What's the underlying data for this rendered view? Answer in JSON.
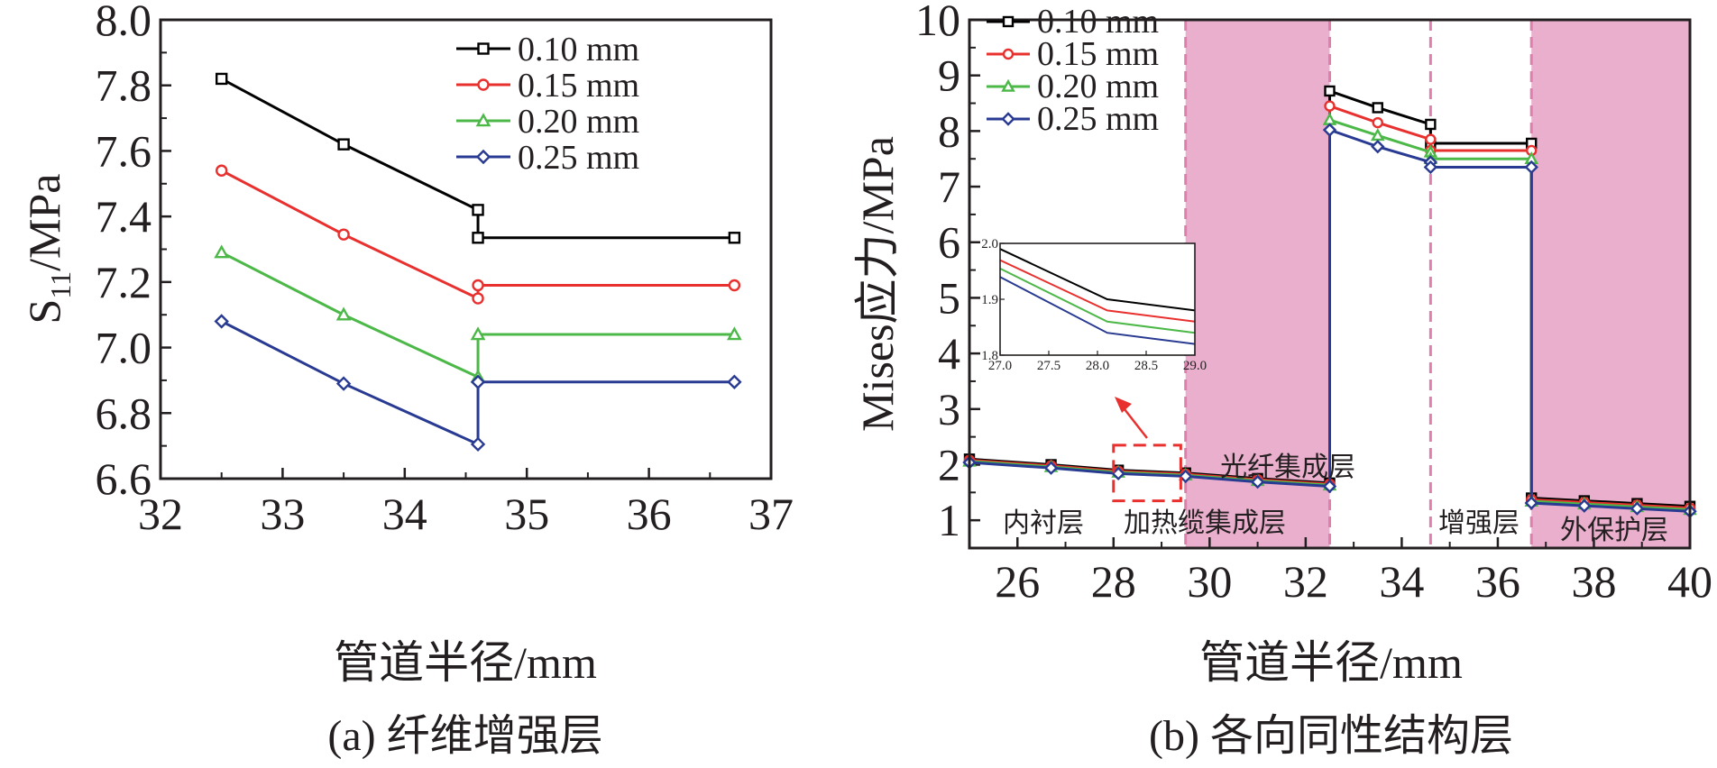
{
  "colors": {
    "s1": "#000000",
    "s2": "#e8302e",
    "s3": "#4cb848",
    "s4": "#283a91",
    "band": "#e9afcc",
    "divider": "#e07fae",
    "highlight": "#e8302e"
  },
  "chart_data": [
    {
      "type": "line",
      "caption": "(a) 纤维增强层",
      "xlabel": "管道半径/mm",
      "ylabel_main": "S",
      "ylabel_sub": "11",
      "ylabel_unit": "/MPa",
      "xlim": [
        32,
        37
      ],
      "ylim": [
        6.6,
        8.0
      ],
      "xticks": [
        "32",
        "33",
        "34",
        "35",
        "36",
        "37"
      ],
      "yticks": [
        "6.6",
        "6.8",
        "7.0",
        "7.2",
        "7.4",
        "7.6",
        "7.8",
        "8.0"
      ],
      "legend_position": "top-right",
      "series": [
        {
          "name": "0.10 mm",
          "color": "#000000",
          "marker": "square",
          "points": [
            [
              32.5,
              7.82
            ],
            [
              33.5,
              7.62
            ],
            [
              34.6,
              7.42
            ],
            [
              34.6,
              7.335
            ],
            [
              36.7,
              7.335
            ]
          ]
        },
        {
          "name": "0.15 mm",
          "color": "#e8302e",
          "marker": "circle",
          "points": [
            [
              32.5,
              7.54
            ],
            [
              33.5,
              7.345
            ],
            [
              34.6,
              7.15
            ],
            [
              34.6,
              7.19
            ],
            [
              36.7,
              7.19
            ]
          ]
        },
        {
          "name": "0.20 mm",
          "color": "#4cb848",
          "marker": "triangle",
          "points": [
            [
              32.5,
              7.29
            ],
            [
              33.5,
              7.1
            ],
            [
              34.6,
              6.91
            ],
            [
              34.6,
              7.04
            ],
            [
              36.7,
              7.04
            ]
          ]
        },
        {
          "name": "0.25 mm",
          "color": "#283a91",
          "marker": "diamond",
          "points": [
            [
              32.5,
              7.08
            ],
            [
              33.5,
              6.89
            ],
            [
              34.6,
              6.705
            ],
            [
              34.6,
              6.895
            ],
            [
              36.7,
              6.895
            ]
          ]
        }
      ]
    },
    {
      "type": "line",
      "caption": "(b) 各向同性结构层",
      "xlabel": "管道半径/mm",
      "ylabel": "Mises应力/MPa",
      "xlim": [
        25,
        40
      ],
      "ylim": [
        0.5,
        10
      ],
      "xticks": [
        "26",
        "28",
        "30",
        "32",
        "34",
        "36",
        "38",
        "40"
      ],
      "yticks": [
        "1",
        "2",
        "3",
        "4",
        "5",
        "6",
        "7",
        "8",
        "9",
        "10"
      ],
      "legend_position": "top-left",
      "shaded_regions": [
        [
          29.5,
          32.5
        ],
        [
          36.7,
          40
        ]
      ],
      "dividers": [
        29.5,
        32.5,
        34.6,
        36.7
      ],
      "region_labels": {
        "lining": "内衬层",
        "heating": "加热缆集成层",
        "optical": "光纤集成层",
        "reinforce": "增强层",
        "outer": "外保护层"
      },
      "series": [
        {
          "name": "0.10 mm",
          "color": "#000000",
          "marker": "square",
          "points": [
            [
              25,
              2.1
            ],
            [
              26.7,
              2.0
            ],
            [
              28.1,
              1.9
            ],
            [
              29.5,
              1.85
            ],
            [
              31,
              1.75
            ],
            [
              32.5,
              1.67
            ],
            [
              32.5,
              8.72
            ],
            [
              33.5,
              8.42
            ],
            [
              34.6,
              8.12
            ],
            [
              34.6,
              7.78
            ],
            [
              36.7,
              7.78
            ],
            [
              36.7,
              1.4
            ],
            [
              37.8,
              1.35
            ],
            [
              38.9,
              1.3
            ],
            [
              40,
              1.25
            ]
          ]
        },
        {
          "name": "0.15 mm",
          "color": "#e8302e",
          "marker": "circle",
          "points": [
            [
              25,
              2.08
            ],
            [
              26.7,
              1.98
            ],
            [
              28.1,
              1.88
            ],
            [
              29.5,
              1.83
            ],
            [
              31,
              1.73
            ],
            [
              32.5,
              1.65
            ],
            [
              32.5,
              8.45
            ],
            [
              33.5,
              8.15
            ],
            [
              34.6,
              7.85
            ],
            [
              34.6,
              7.65
            ],
            [
              36.7,
              7.65
            ],
            [
              36.7,
              1.37
            ],
            [
              37.8,
              1.32
            ],
            [
              38.9,
              1.27
            ],
            [
              40,
              1.22
            ]
          ]
        },
        {
          "name": "0.20 mm",
          "color": "#4cb848",
          "marker": "triangle",
          "points": [
            [
              25,
              2.06
            ],
            [
              26.7,
              1.96
            ],
            [
              28.1,
              1.86
            ],
            [
              29.5,
              1.81
            ],
            [
              31,
              1.71
            ],
            [
              32.5,
              1.63
            ],
            [
              32.5,
              8.2
            ],
            [
              33.5,
              7.92
            ],
            [
              34.6,
              7.62
            ],
            [
              34.6,
              7.5
            ],
            [
              36.7,
              7.5
            ],
            [
              36.7,
              1.34
            ],
            [
              37.8,
              1.29
            ],
            [
              38.9,
              1.24
            ],
            [
              40,
              1.19
            ]
          ]
        },
        {
          "name": "0.25 mm",
          "color": "#283a91",
          "marker": "diamond",
          "points": [
            [
              25,
              2.04
            ],
            [
              26.7,
              1.94
            ],
            [
              28.1,
              1.84
            ],
            [
              29.5,
              1.79
            ],
            [
              31,
              1.69
            ],
            [
              32.5,
              1.61
            ],
            [
              32.5,
              8.02
            ],
            [
              33.5,
              7.72
            ],
            [
              34.6,
              7.44
            ],
            [
              34.6,
              7.35
            ],
            [
              36.7,
              7.35
            ],
            [
              36.7,
              1.31
            ],
            [
              37.8,
              1.26
            ],
            [
              38.9,
              1.21
            ],
            [
              40,
              1.16
            ]
          ]
        }
      ],
      "inset": {
        "xlim": [
          27.0,
          29.0
        ],
        "ylim": [
          1.8,
          2.0
        ],
        "xticks": [
          "27.0",
          "27.5",
          "28.0",
          "28.5",
          "29.0"
        ],
        "yticks": [
          "1.8",
          "1.9",
          "2.0"
        ],
        "series": [
          {
            "color": "#000000",
            "points": [
              [
                27.0,
                1.99
              ],
              [
                28.1,
                1.9
              ],
              [
                29.0,
                1.88
              ]
            ]
          },
          {
            "color": "#e8302e",
            "points": [
              [
                27.0,
                1.97
              ],
              [
                28.1,
                1.88
              ],
              [
                29.0,
                1.86
              ]
            ]
          },
          {
            "color": "#4cb848",
            "points": [
              [
                27.0,
                1.955
              ],
              [
                28.1,
                1.86
              ],
              [
                29.0,
                1.84
              ]
            ]
          },
          {
            "color": "#283a91",
            "points": [
              [
                27.0,
                1.94
              ],
              [
                28.1,
                1.84
              ],
              [
                29.0,
                1.82
              ]
            ]
          }
        ]
      },
      "zoom_box": {
        "x": [
          28.0,
          29.4
        ],
        "y": [
          1.35,
          2.35
        ]
      }
    }
  ]
}
